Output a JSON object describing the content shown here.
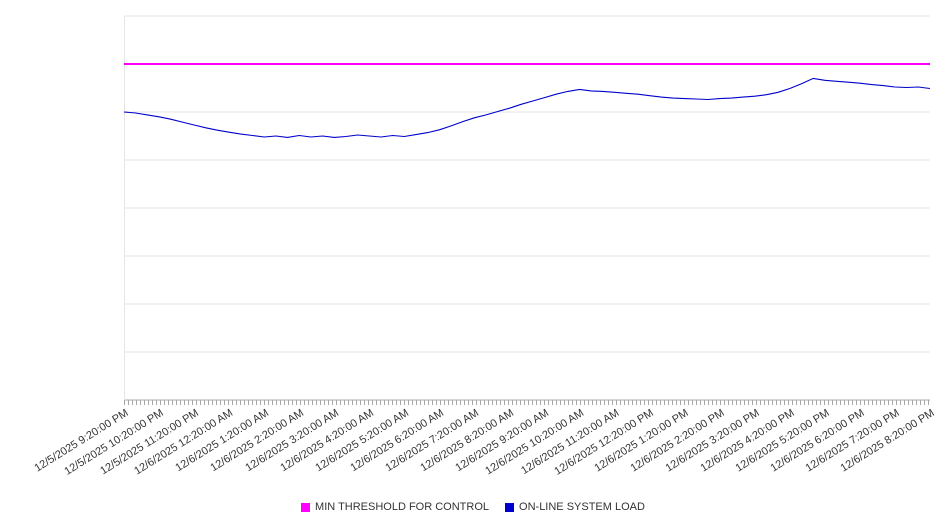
{
  "chart_data": {
    "type": "line",
    "title": "",
    "grid": true,
    "legend_position": "bottom",
    "ylim": [
      0,
      8
    ],
    "y_tick_labels_visible": false,
    "x_labels": [
      "12/5/2025 9:20:00 PM",
      "12/5/2025 10:20:00 PM",
      "12/5/2025 11:20:00 PM",
      "12/6/2025 12:20:00 AM",
      "12/6/2025 1:20:00 AM",
      "12/6/2025 2:20:00 AM",
      "12/6/2025 3:20:00 AM",
      "12/6/2025 4:20:00 AM",
      "12/6/2025 5:20:00 AM",
      "12/6/2025 6:20:00 AM",
      "12/6/2025 7:20:00 AM",
      "12/6/2025 8:20:00 AM",
      "12/6/2025 9:20:00 AM",
      "12/6/2025 10:20:00 AM",
      "12/6/2025 11:20:00 AM",
      "12/6/2025 12:20:00 PM",
      "12/6/2025 1:20:00 PM",
      "12/6/2025 2:20:00 PM",
      "12/6/2025 3:20:00 PM",
      "12/6/2025 4:20:00 PM",
      "12/6/2025 5:20:00 PM",
      "12/6/2025 6:20:00 PM",
      "12/6/2025 7:20:00 PM",
      "12/6/2025 8:20:00 PM"
    ],
    "series": [
      {
        "name": "MIN THRESHOLD FOR CONTROL",
        "color": "#ff00ff",
        "kind": "threshold",
        "value": 7.0
      },
      {
        "name": "ON-LINE SYSTEM LOAD",
        "color": "#0000cc",
        "kind": "line",
        "values": [
          6.0,
          5.98,
          5.94,
          5.9,
          5.85,
          5.79,
          5.73,
          5.67,
          5.62,
          5.58,
          5.54,
          5.51,
          5.48,
          5.5,
          5.47,
          5.51,
          5.48,
          5.5,
          5.47,
          5.49,
          5.52,
          5.5,
          5.48,
          5.51,
          5.49,
          5.53,
          5.57,
          5.63,
          5.71,
          5.8,
          5.88,
          5.94,
          6.01,
          6.08,
          6.16,
          6.23,
          6.3,
          6.37,
          6.43,
          6.47,
          6.44,
          6.43,
          6.41,
          6.39,
          6.37,
          6.34,
          6.31,
          6.29,
          6.28,
          6.27,
          6.26,
          6.28,
          6.29,
          6.31,
          6.33,
          6.36,
          6.41,
          6.49,
          6.59,
          6.7,
          6.66,
          6.64,
          6.62,
          6.6,
          6.57,
          6.55,
          6.52,
          6.51,
          6.52,
          6.49
        ]
      }
    ]
  },
  "legend": {
    "items": [
      {
        "label": "MIN THRESHOLD FOR CONTROL",
        "color": "#ff00ff"
      },
      {
        "label": "ON-LINE SYSTEM LOAD",
        "color": "#0000cc"
      }
    ]
  },
  "colors": {
    "gridline": "#e6e6e6",
    "axis": "#aaaaaa",
    "tick": "#a6a6a6",
    "label_text": "#333333"
  }
}
